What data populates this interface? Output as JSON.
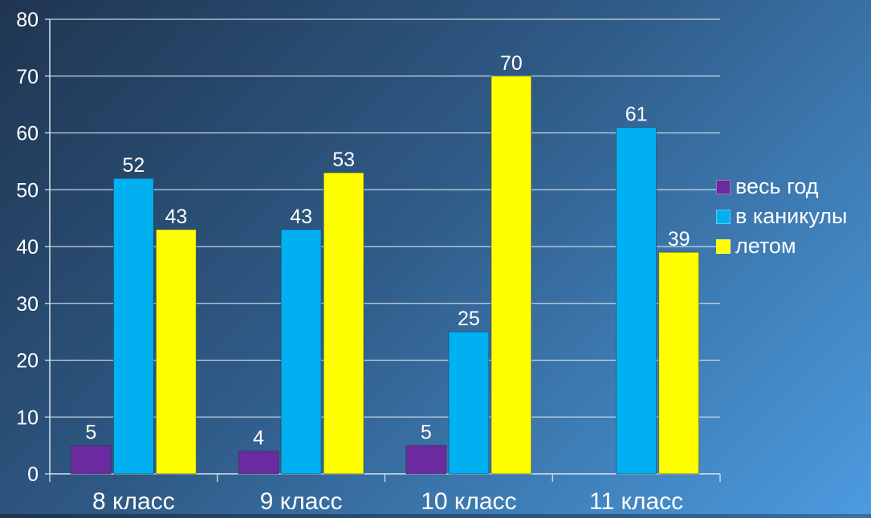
{
  "chart_data": {
    "type": "bar",
    "categories": [
      "8 класс",
      "9 класс",
      "10 класс",
      "11 класс"
    ],
    "series": [
      {
        "name": "весь год",
        "color": "#6b2aa0",
        "values": [
          5,
          4,
          5,
          null
        ]
      },
      {
        "name": "в каникулы",
        "color": "#00b0f0",
        "values": [
          52,
          43,
          25,
          61
        ]
      },
      {
        "name": "летом",
        "color": "#ffff00",
        "values": [
          43,
          53,
          70,
          39
        ]
      }
    ],
    "ylim": [
      0,
      80
    ],
    "yticks": [
      0,
      10,
      20,
      30,
      40,
      50,
      60,
      70,
      80
    ],
    "grid": true,
    "legend_position": "right"
  }
}
